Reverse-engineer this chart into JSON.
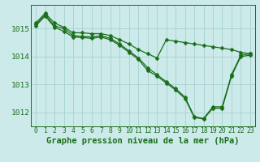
{
  "title": "Graphe pression niveau de la mer (hPa)",
  "bg_color": "#cceaea",
  "grid_color": "#aad4d4",
  "line_color": "#1a6e1a",
  "x_values": [
    0,
    1,
    2,
    3,
    4,
    5,
    6,
    7,
    8,
    9,
    10,
    11,
    12,
    13,
    14,
    15,
    16,
    17,
    18,
    19,
    20,
    21,
    22,
    23
  ],
  "series1": [
    1015.2,
    1015.55,
    1015.2,
    1015.05,
    1014.85,
    1014.85,
    1014.82,
    1014.82,
    1014.75,
    1014.6,
    1014.45,
    1014.25,
    1014.1,
    1013.95,
    1014.6,
    1014.55,
    1014.5,
    1014.45,
    1014.4,
    1014.35,
    1014.3,
    1014.25,
    1014.15,
    1014.1
  ],
  "series2": [
    1015.15,
    1015.5,
    1015.1,
    1015.0,
    1014.75,
    1014.72,
    1014.7,
    1014.75,
    1014.65,
    1014.45,
    1014.2,
    1013.95,
    1013.6,
    1013.35,
    1013.1,
    1012.85,
    1012.55,
    1011.85,
    1011.78,
    1012.2,
    1012.2,
    1013.35,
    1014.05,
    1014.1
  ],
  "series3": [
    1015.1,
    1015.45,
    1015.05,
    1014.9,
    1014.7,
    1014.68,
    1014.65,
    1014.7,
    1014.6,
    1014.4,
    1014.15,
    1013.9,
    1013.5,
    1013.3,
    1013.05,
    1012.8,
    1012.5,
    1011.82,
    1011.76,
    1012.15,
    1012.15,
    1013.3,
    1014.0,
    1014.05
  ],
  "ylim_min": 1011.5,
  "ylim_max": 1015.85,
  "yticks": [
    1012,
    1013,
    1014,
    1015
  ],
  "title_fontsize": 7.5,
  "tick_fontsize": 5.8,
  "marker_size": 2.5,
  "linewidth": 0.9
}
